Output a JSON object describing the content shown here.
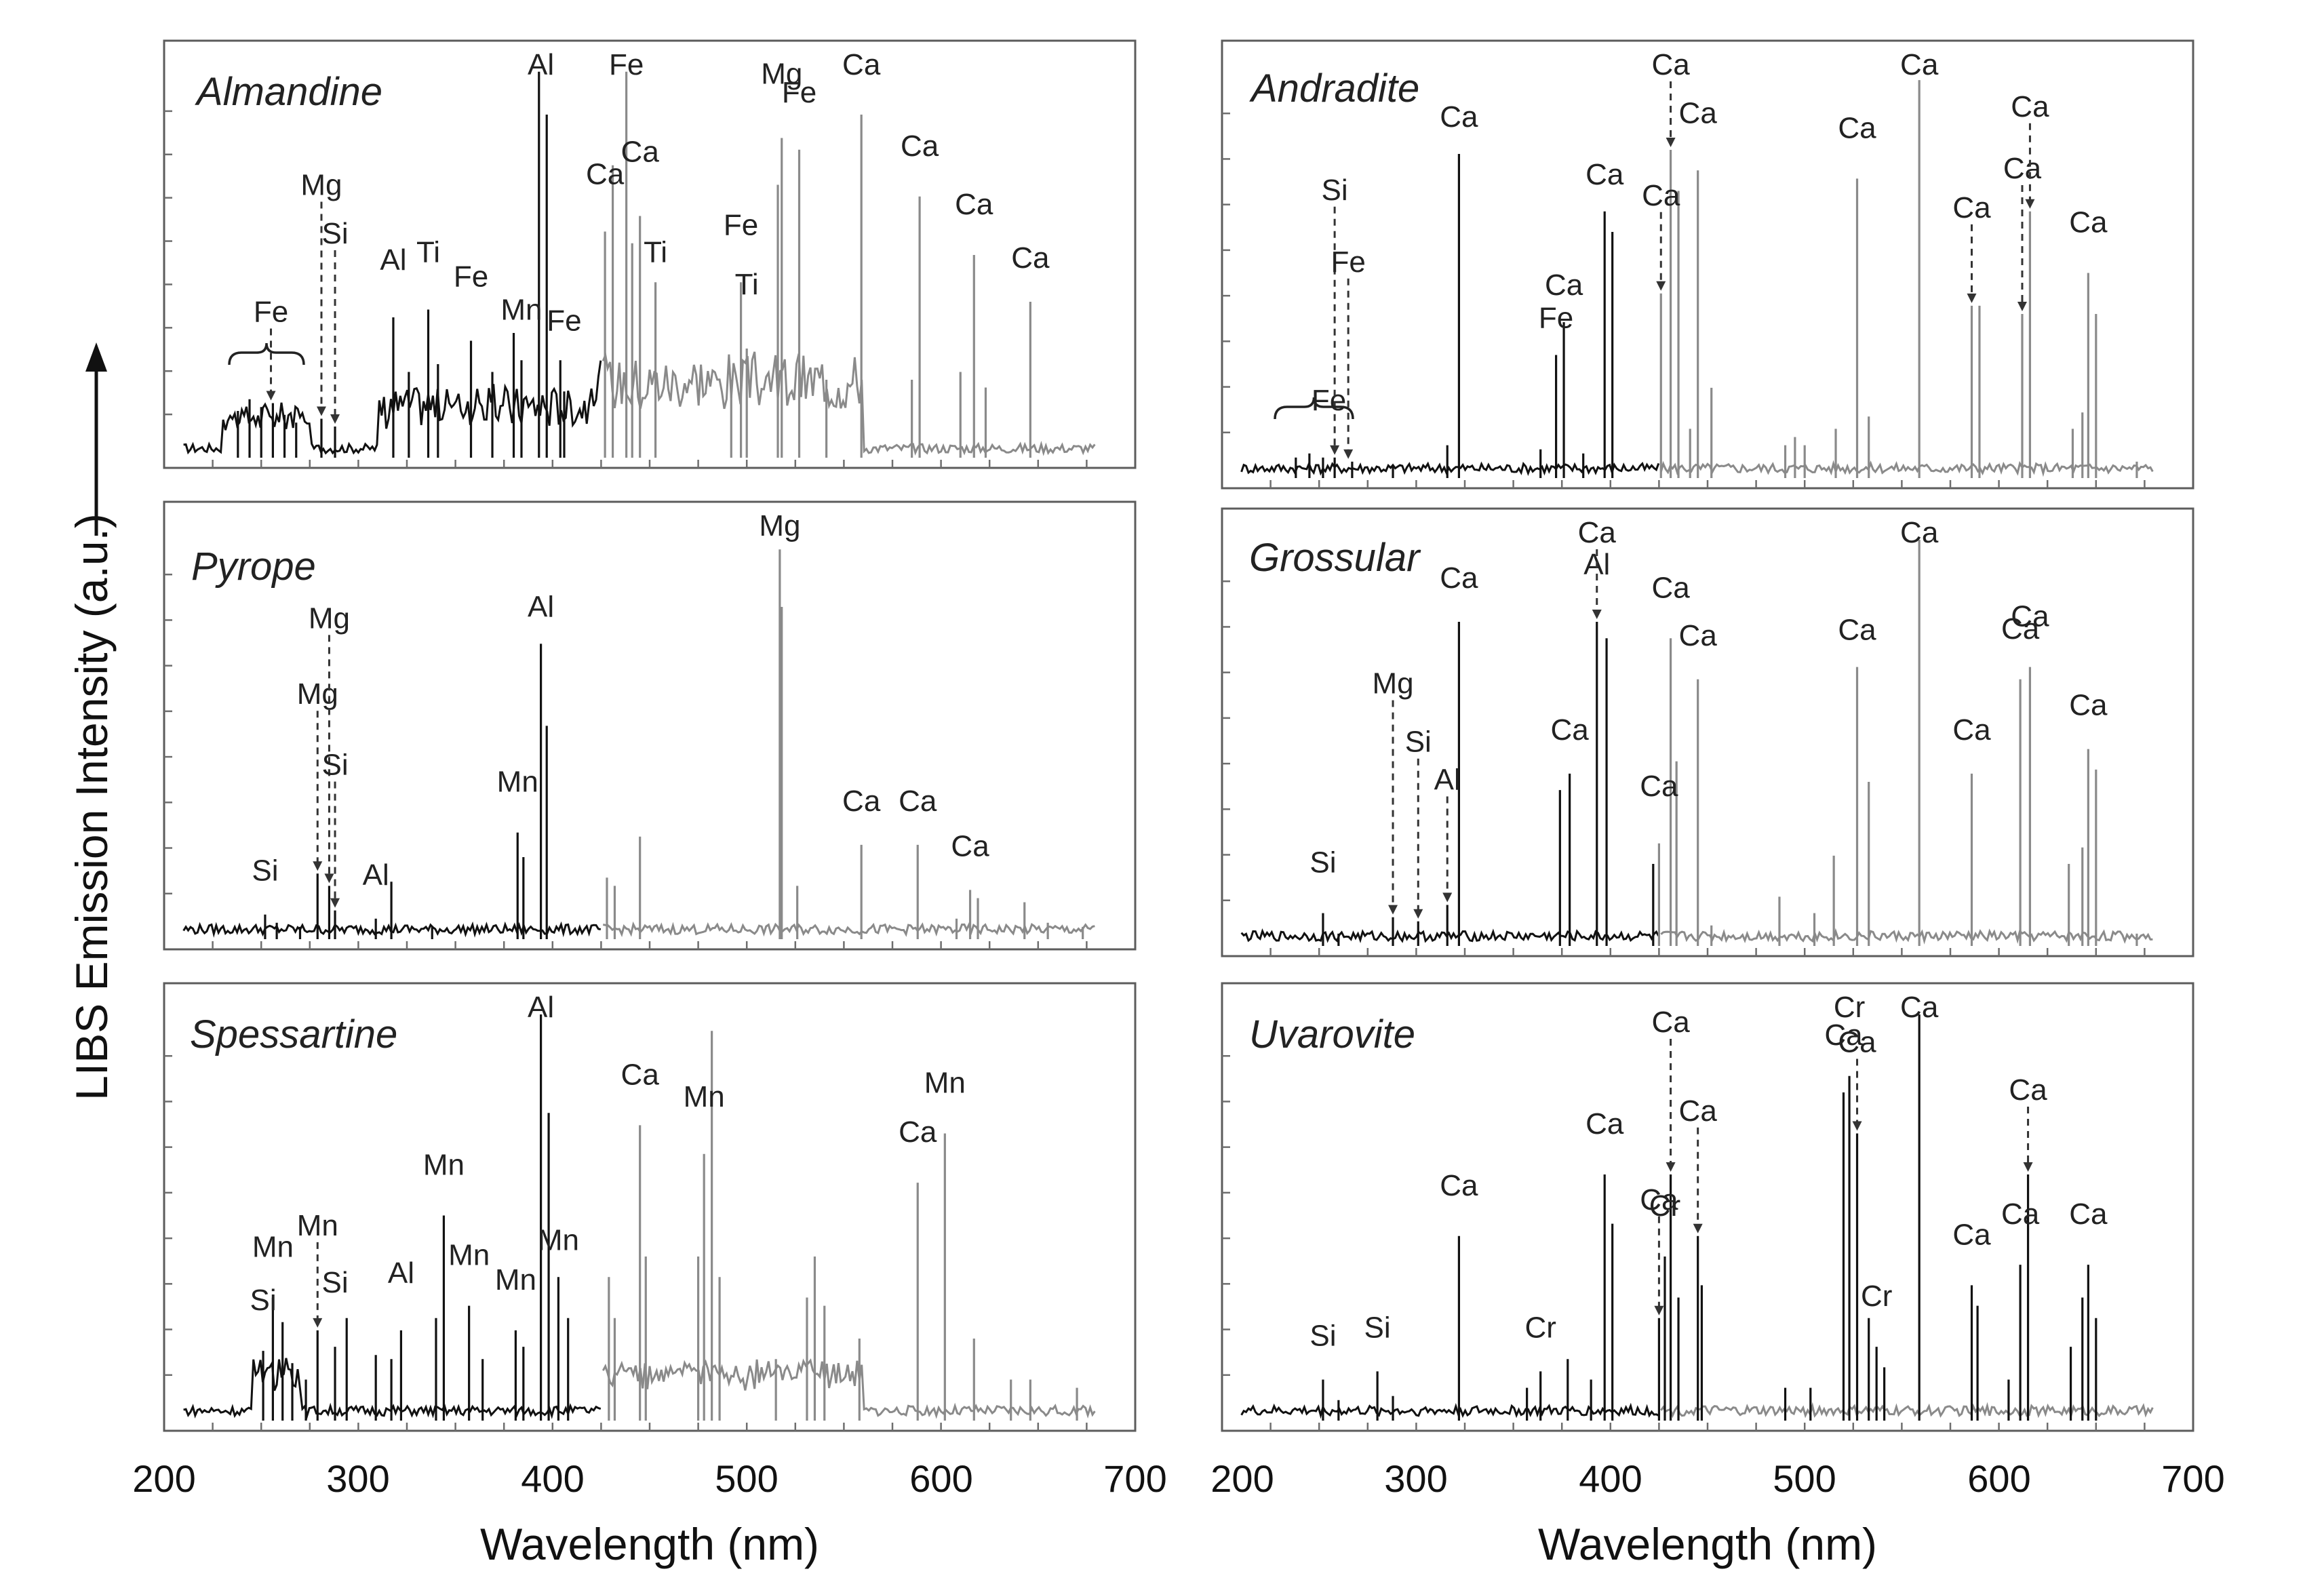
{
  "y_axis_label": "LIBS Emission Intensity (a.u.)",
  "x_axis_label": "Wavelength (nm)",
  "x_ticks": [
    "200",
    "300",
    "400",
    "500",
    "600",
    "700"
  ],
  "colors": {
    "dark_spectrum": "#111111",
    "light_spectrum": "#8a8a8a",
    "frame": "#5c5c5c"
  },
  "chart_data": [
    {
      "type": "line",
      "title": "Almandine",
      "xlim": [
        200,
        700
      ],
      "ylim": [
        0,
        100
      ],
      "xlabel": "Wavelength (nm)",
      "ylabel": "LIBS Emission Intensity (a.u.)",
      "peaks": [
        [
          238,
          12
        ],
        [
          244,
          15
        ],
        [
          250,
          13
        ],
        [
          256,
          14
        ],
        [
          262,
          11
        ],
        [
          268,
          9
        ],
        [
          281,
          10
        ],
        [
          288,
          8
        ],
        [
          318,
          36
        ],
        [
          326,
          22
        ],
        [
          336,
          38
        ],
        [
          341,
          24
        ],
        [
          358,
          30
        ],
        [
          369,
          22
        ],
        [
          380,
          32
        ],
        [
          384,
          25
        ],
        [
          393,
          99
        ],
        [
          397,
          88
        ],
        [
          404,
          25
        ],
        [
          406,
          17
        ],
        [
          427,
          58
        ],
        [
          431,
          75
        ],
        [
          438,
          99
        ],
        [
          441,
          55
        ],
        [
          445,
          62
        ],
        [
          453,
          45
        ],
        [
          492,
          20
        ],
        [
          497,
          45
        ],
        [
          500,
          28
        ],
        [
          516,
          70
        ],
        [
          518,
          82
        ],
        [
          527,
          79
        ],
        [
          541,
          20
        ],
        [
          559,
          88
        ],
        [
          585,
          20
        ],
        [
          589,
          67
        ],
        [
          610,
          22
        ],
        [
          617,
          52
        ],
        [
          623,
          18
        ],
        [
          646,
          40
        ]
      ],
      "annotations": [
        {
          "text": "Fe",
          "target": 255
        },
        {
          "text": "Mg",
          "target": 281
        },
        {
          "text": "Si",
          "target": 288
        },
        {
          "text": "Al",
          "target": 318
        },
        {
          "text": "Ti",
          "target": 336
        },
        {
          "text": "Fe",
          "target": 358
        },
        {
          "text": "Mn",
          "target": 384
        },
        {
          "text": "Al",
          "target": 394
        },
        {
          "text": "Ca",
          "target": 427
        },
        {
          "text": "Fe",
          "target": 406
        },
        {
          "text": "Fe",
          "target": 438
        },
        {
          "text": "Ca",
          "target": 445
        },
        {
          "text": "Ti",
          "target": 453
        },
        {
          "text": "Fe",
          "target": 497
        },
        {
          "text": "Ti",
          "target": 500
        },
        {
          "text": "Mg",
          "target": 518
        },
        {
          "text": "Fe",
          "target": 527
        },
        {
          "text": "Ca",
          "target": 559
        },
        {
          "text": "Ca",
          "target": 589
        },
        {
          "text": "Ca",
          "target": 617
        },
        {
          "text": "Ca",
          "target": 646
        }
      ]
    },
    {
      "type": "line",
      "title": "Andradite",
      "xlim": [
        200,
        700
      ],
      "ylim": [
        0,
        100
      ],
      "peaks": [
        [
          238,
          5
        ],
        [
          245,
          6
        ],
        [
          252,
          5
        ],
        [
          258,
          5
        ],
        [
          267,
          4
        ],
        [
          288,
          3
        ],
        [
          316,
          8
        ],
        [
          322,
          79
        ],
        [
          364,
          7
        ],
        [
          372,
          30
        ],
        [
          376,
          38
        ],
        [
          386,
          6
        ],
        [
          397,
          65
        ],
        [
          401,
          60
        ],
        [
          426,
          45
        ],
        [
          431,
          80
        ],
        [
          435,
          70
        ],
        [
          441,
          12
        ],
        [
          445,
          75
        ],
        [
          452,
          22
        ],
        [
          490,
          8
        ],
        [
          495,
          10
        ],
        [
          500,
          8
        ],
        [
          516,
          12
        ],
        [
          527,
          73
        ],
        [
          533,
          15
        ],
        [
          559,
          97
        ],
        [
          586,
          42
        ],
        [
          590,
          42
        ],
        [
          612,
          40
        ],
        [
          616,
          65
        ],
        [
          638,
          12
        ],
        [
          643,
          16
        ],
        [
          646,
          50
        ],
        [
          650,
          40
        ],
        [
          671,
          4
        ]
      ],
      "annotations": [
        {
          "text": "Fe",
          "target": 255
        },
        {
          "text": "Si",
          "target": 258
        },
        {
          "text": "Fe",
          "target": 265
        },
        {
          "text": "Ca",
          "target": 322
        },
        {
          "text": "Fe",
          "target": 372
        },
        {
          "text": "Ca",
          "target": 376
        },
        {
          "text": "Ca",
          "target": 397
        },
        {
          "text": "Ca",
          "target": 426
        },
        {
          "text": "Ca",
          "target": 431
        },
        {
          "text": "Ca",
          "target": 445
        },
        {
          "text": "Ca",
          "target": 527
        },
        {
          "text": "Ca",
          "target": 559
        },
        {
          "text": "Ca",
          "target": 586
        },
        {
          "text": "Ca",
          "target": 612
        },
        {
          "text": "Ca",
          "target": 616
        },
        {
          "text": "Ca",
          "target": 646
        }
      ]
    },
    {
      "type": "line",
      "title": "Pyrope",
      "xlim": [
        200,
        700
      ],
      "ylim": [
        0,
        100
      ],
      "peaks": [
        [
          252,
          6
        ],
        [
          258,
          4
        ],
        [
          270,
          3
        ],
        [
          279,
          16
        ],
        [
          285,
          13
        ],
        [
          288,
          7
        ],
        [
          309,
          5
        ],
        [
          317,
          14
        ],
        [
          338,
          3
        ],
        [
          382,
          26
        ],
        [
          385,
          20
        ],
        [
          394,
          72
        ],
        [
          397,
          52
        ],
        [
          428,
          15
        ],
        [
          432,
          13
        ],
        [
          445,
          25
        ],
        [
          517,
          95
        ],
        [
          518,
          81
        ],
        [
          526,
          13
        ],
        [
          559,
          23
        ],
        [
          588,
          23
        ],
        [
          608,
          5
        ],
        [
          615,
          12
        ],
        [
          619,
          10
        ],
        [
          643,
          9
        ],
        [
          655,
          4
        ],
        [
          673,
          3
        ]
      ],
      "annotations": [
        {
          "text": "Si",
          "target": 252
        },
        {
          "text": "Mg",
          "target": 279
        },
        {
          "text": "Mg",
          "target": 285
        },
        {
          "text": "Si",
          "target": 288
        },
        {
          "text": "Al",
          "target": 309
        },
        {
          "text": "Mn",
          "target": 382
        },
        {
          "text": "Al",
          "target": 394
        },
        {
          "text": "Mg",
          "target": 517
        },
        {
          "text": "Ca",
          "target": 559
        },
        {
          "text": "Ca",
          "target": 588
        },
        {
          "text": "Ca",
          "target": 615
        }
      ]
    },
    {
      "type": "line",
      "title": "Spessartine",
      "xlim": [
        200,
        700
      ],
      "ylim": [
        0,
        100
      ],
      "peaks": [
        [
          251,
          17
        ],
        [
          256,
          30
        ],
        [
          261,
          24
        ],
        [
          266,
          14
        ],
        [
          273,
          10
        ],
        [
          279,
          22
        ],
        [
          288,
          18
        ],
        [
          294,
          25
        ],
        [
          309,
          16
        ],
        [
          317,
          15
        ],
        [
          322,
          22
        ],
        [
          340,
          25
        ],
        [
          344,
          50
        ],
        [
          357,
          28
        ],
        [
          364,
          15
        ],
        [
          381,
          22
        ],
        [
          385,
          18
        ],
        [
          394,
          99
        ],
        [
          398,
          75
        ],
        [
          403,
          35
        ],
        [
          408,
          25
        ],
        [
          429,
          35
        ],
        [
          432,
          25
        ],
        [
          445,
          72
        ],
        [
          448,
          40
        ],
        [
          475,
          40
        ],
        [
          478,
          65
        ],
        [
          482,
          95
        ],
        [
          486,
          35
        ],
        [
          515,
          15
        ],
        [
          531,
          30
        ],
        [
          535,
          40
        ],
        [
          540,
          28
        ],
        [
          558,
          20
        ],
        [
          588,
          58
        ],
        [
          602,
          70
        ],
        [
          617,
          20
        ],
        [
          636,
          10
        ],
        [
          646,
          10
        ],
        [
          670,
          8
        ]
      ],
      "annotations": [
        {
          "text": "Si",
          "target": 251
        },
        {
          "text": "Mn",
          "target": 256
        },
        {
          "text": "Mn",
          "target": 279
        },
        {
          "text": "Si",
          "target": 288
        },
        {
          "text": "Al",
          "target": 322
        },
        {
          "text": "Mn",
          "target": 344
        },
        {
          "text": "Mn",
          "target": 357
        },
        {
          "text": "Mn",
          "target": 381
        },
        {
          "text": "Al",
          "target": 394
        },
        {
          "text": "Mn",
          "target": 403
        },
        {
          "text": "Ca",
          "target": 445
        },
        {
          "text": "Mn",
          "target": 478
        },
        {
          "text": "Ca",
          "target": 588
        },
        {
          "text": "Mn",
          "target": 602
        }
      ]
    },
    {
      "type": "line",
      "title": "Grossular",
      "xlim": [
        200,
        700
      ],
      "ylim": [
        0,
        100
      ],
      "peaks": [
        [
          252,
          8
        ],
        [
          260,
          3
        ],
        [
          288,
          7
        ],
        [
          301,
          6
        ],
        [
          316,
          10
        ],
        [
          322,
          79
        ],
        [
          374,
          38
        ],
        [
          379,
          42
        ],
        [
          393,
          79
        ],
        [
          398,
          75
        ],
        [
          422,
          20
        ],
        [
          425,
          25
        ],
        [
          431,
          75
        ],
        [
          434,
          45
        ],
        [
          445,
          65
        ],
        [
          452,
          5
        ],
        [
          487,
          12
        ],
        [
          505,
          8
        ],
        [
          515,
          22
        ],
        [
          527,
          68
        ],
        [
          533,
          40
        ],
        [
          559,
          99
        ],
        [
          586,
          42
        ],
        [
          611,
          65
        ],
        [
          616,
          68
        ],
        [
          636,
          20
        ],
        [
          643,
          24
        ],
        [
          646,
          48
        ],
        [
          650,
          43
        ],
        [
          671,
          3
        ]
      ],
      "annotations": [
        {
          "text": "Si",
          "target": 252
        },
        {
          "text": "Mg",
          "target": 288
        },
        {
          "text": "Si",
          "target": 301
        },
        {
          "text": "Al",
          "target": 316
        },
        {
          "text": "Ca",
          "target": 322
        },
        {
          "text": "Ca",
          "target": 379
        },
        {
          "text": "Al",
          "target": 393
        },
        {
          "text": "Ca",
          "target": 393
        },
        {
          "text": "Ca",
          "target": 425
        },
        {
          "text": "Ca",
          "target": 431
        },
        {
          "text": "Ca",
          "target": 445
        },
        {
          "text": "Ca",
          "target": 527
        },
        {
          "text": "Ca",
          "target": 559
        },
        {
          "text": "Ca",
          "target": 586
        },
        {
          "text": "Ca",
          "target": 611
        },
        {
          "text": "Ca",
          "target": 616
        },
        {
          "text": "Ca",
          "target": 646
        }
      ]
    },
    {
      "type": "line",
      "title": "Uvarovite",
      "xlim": [
        200,
        700
      ],
      "ylim": [
        0,
        100
      ],
      "peaks": [
        [
          252,
          10
        ],
        [
          260,
          5
        ],
        [
          280,
          12
        ],
        [
          288,
          6
        ],
        [
          322,
          45
        ],
        [
          357,
          8
        ],
        [
          364,
          12
        ],
        [
          378,
          15
        ],
        [
          390,
          10
        ],
        [
          397,
          60
        ],
        [
          401,
          48
        ],
        [
          425,
          25
        ],
        [
          428,
          40
        ],
        [
          431,
          60
        ],
        [
          435,
          30
        ],
        [
          445,
          45
        ],
        [
          447,
          33
        ],
        [
          490,
          8
        ],
        [
          503,
          8
        ],
        [
          520,
          80
        ],
        [
          523,
          84
        ],
        [
          527,
          70
        ],
        [
          533,
          25
        ],
        [
          537,
          18
        ],
        [
          541,
          13
        ],
        [
          559,
          99
        ],
        [
          586,
          33
        ],
        [
          589,
          28
        ],
        [
          605,
          10
        ],
        [
          611,
          38
        ],
        [
          615,
          60
        ],
        [
          637,
          18
        ],
        [
          643,
          30
        ],
        [
          646,
          38
        ],
        [
          650,
          25
        ]
      ],
      "annotations": [
        {
          "text": "Si",
          "target": 252
        },
        {
          "text": "Si",
          "target": 280
        },
        {
          "text": "Ca",
          "target": 322
        },
        {
          "text": "Cr",
          "target": 364
        },
        {
          "text": "Ca",
          "target": 397
        },
        {
          "text": "Ca",
          "target": 425
        },
        {
          "text": "Cr",
          "target": 428
        },
        {
          "text": "Ca",
          "target": 431
        },
        {
          "text": "Ca",
          "target": 445
        },
        {
          "text": "Ca",
          "target": 520
        },
        {
          "text": "Cr",
          "target": 523
        },
        {
          "text": "Ca",
          "target": 527
        },
        {
          "text": "Cr",
          "target": 537
        },
        {
          "text": "Ca",
          "target": 559
        },
        {
          "text": "Ca",
          "target": 586
        },
        {
          "text": "Ca",
          "target": 615
        },
        {
          "text": "Ca",
          "target": 611
        },
        {
          "text": "Ca",
          "target": 646
        }
      ]
    }
  ]
}
